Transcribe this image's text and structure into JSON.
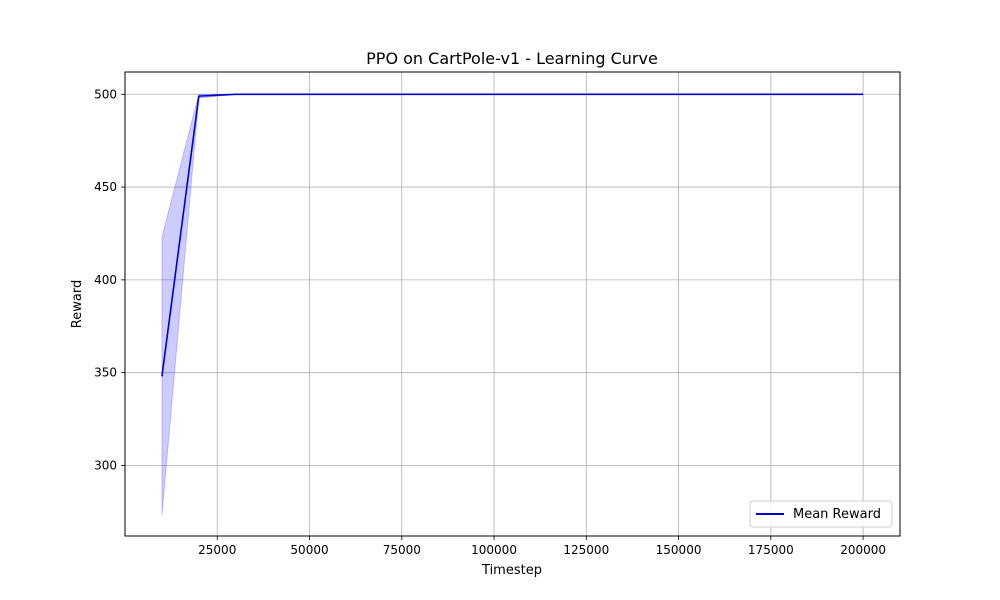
{
  "chart_data": {
    "type": "line",
    "title": "PPO on CartPole-v1 - Learning Curve",
    "xlabel": "Timestep",
    "ylabel": "Reward",
    "xlim": [
      0,
      210000
    ],
    "ylim": [
      262,
      512
    ],
    "xticks": [
      25000,
      50000,
      75000,
      100000,
      125000,
      150000,
      175000,
      200000
    ],
    "xtick_labels": [
      "25000",
      "50000",
      "75000",
      "100000",
      "125000",
      "150000",
      "175000",
      "200000"
    ],
    "yticks": [
      300,
      350,
      400,
      450,
      500
    ],
    "ytick_labels": [
      "300",
      "350",
      "400",
      "450",
      "500"
    ],
    "grid": true,
    "legend_position": "lower-right",
    "series": [
      {
        "name": "Mean Reward",
        "color": "#0000cc",
        "x": [
          10000,
          20000,
          30000,
          40000,
          50000,
          60000,
          70000,
          80000,
          90000,
          100000,
          110000,
          120000,
          130000,
          140000,
          150000,
          160000,
          170000,
          180000,
          190000,
          200000
        ],
        "y": [
          348,
          499,
          500,
          500,
          500,
          500,
          500,
          500,
          500,
          500,
          500,
          500,
          500,
          500,
          500,
          500,
          500,
          500,
          500,
          500
        ],
        "band_lower": [
          273,
          498,
          500,
          500,
          500,
          500,
          500,
          500,
          500,
          500,
          500,
          500,
          500,
          500,
          500,
          500,
          500,
          500,
          500,
          500
        ],
        "band_upper": [
          423,
          500,
          500,
          500,
          500,
          500,
          500,
          500,
          500,
          500,
          500,
          500,
          500,
          500,
          500,
          500,
          500,
          500,
          500,
          500
        ],
        "band_color": "#0000ff"
      }
    ]
  }
}
